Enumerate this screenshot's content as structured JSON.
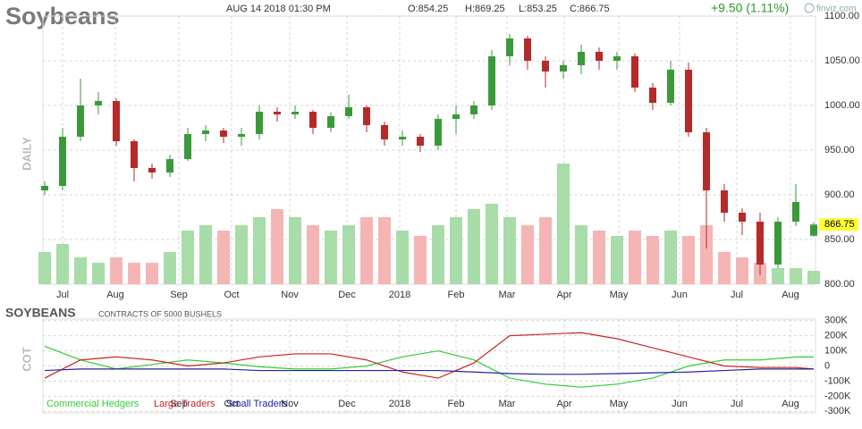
{
  "chart_data": [
    {
      "type": "candlestick",
      "title": "Soybeans",
      "subtitle": "AUG 14 2018 01:30 PM",
      "ohlc_labels": [
        "O:854.25",
        "H:869.25",
        "L:853.25",
        "C:866.75"
      ],
      "change_label": "+9.50 (1.11%)",
      "source": "finviz.com",
      "ylabel": "DAILY",
      "up_color": "#3a9a3a",
      "down_color": "#b52a2a",
      "volume_up_color": "#a8dca8",
      "volume_down_color": "#f5b5b5",
      "xlim": [
        -0.1,
        43.1
      ],
      "xticks": [
        {
          "value": 1,
          "label": "Jul"
        },
        {
          "value": 3.95,
          "label": "Aug"
        },
        {
          "value": 7.5,
          "label": "Sep"
        },
        {
          "value": 10.45,
          "label": "Oct"
        },
        {
          "value": 13.7,
          "label": "Nov"
        },
        {
          "value": 16.9,
          "label": "Dec"
        },
        {
          "value": 19.85,
          "label": "2018"
        },
        {
          "value": 23,
          "label": "Feb"
        },
        {
          "value": 25.85,
          "label": "Mar"
        },
        {
          "value": 29.05,
          "label": "Apr"
        },
        {
          "value": 32.1,
          "label": "May"
        },
        {
          "value": 35.5,
          "label": "Jun"
        },
        {
          "value": 38.7,
          "label": "Jul"
        },
        {
          "value": 41.7,
          "label": "Aug"
        }
      ],
      "ylim": [
        800,
        1100
      ],
      "yticks": [
        {
          "value": 800,
          "label": "800.00"
        },
        {
          "value": 850,
          "label": "850.00"
        },
        {
          "value": 900,
          "label": "900.00"
        },
        {
          "value": 950,
          "label": "950.00"
        },
        {
          "value": 1000,
          "label": "1000.00"
        },
        {
          "value": 1050,
          "label": "1050.00"
        },
        {
          "value": 1100,
          "label": "1100.00"
        }
      ],
      "grid": true,
      "last_price": 866.75,
      "last_price_color": "#ffff33",
      "open": [
        905,
        910,
        965,
        1000,
        1005,
        960,
        930,
        925,
        940,
        968,
        972,
        965,
        968,
        993,
        990,
        993,
        975,
        988,
        998,
        978,
        962,
        965,
        955,
        985,
        990,
        1000,
        1055,
        1075,
        1050,
        1038,
        1045,
        1060,
        1050,
        1055,
        1020,
        1003,
        1040,
        970,
        905,
        880,
        870,
        822,
        870,
        854.25
      ],
      "high": [
        915,
        975,
        1030,
        1015,
        1008,
        962,
        935,
        945,
        975,
        978,
        975,
        975,
        1000,
        998,
        1000,
        995,
        992,
        1012,
        1000,
        982,
        972,
        968,
        990,
        1000,
        1005,
        1062,
        1080,
        1078,
        1055,
        1050,
        1068,
        1065,
        1060,
        1058,
        1025,
        1050,
        1048,
        975,
        912,
        885,
        880,
        875,
        912,
        869.25
      ],
      "low": [
        900,
        905,
        960,
        990,
        955,
        915,
        918,
        920,
        938,
        960,
        958,
        955,
        962,
        982,
        985,
        968,
        970,
        985,
        970,
        955,
        955,
        948,
        950,
        968,
        985,
        995,
        1045,
        1040,
        1020,
        1030,
        1035,
        1040,
        1040,
        1015,
        995,
        1000,
        965,
        840,
        870,
        855,
        810,
        818,
        865,
        853.25
      ],
      "close": [
        910,
        965,
        1000,
        1005,
        960,
        930,
        925,
        940,
        968,
        972,
        965,
        968,
        993,
        990,
        993,
        975,
        988,
        998,
        978,
        962,
        965,
        955,
        985,
        990,
        1000,
        1055,
        1075,
        1050,
        1038,
        1045,
        1060,
        1050,
        1055,
        1020,
        1003,
        1040,
        970,
        905,
        880,
        870,
        822,
        870,
        892,
        866.75
      ],
      "volume_lim": [
        0,
        100
      ],
      "volume": [
        12,
        15,
        10,
        8,
        10,
        8,
        8,
        12,
        20,
        22,
        20,
        22,
        25,
        28,
        25,
        22,
        20,
        22,
        25,
        25,
        20,
        18,
        22,
        25,
        28,
        30,
        25,
        22,
        25,
        45,
        22,
        20,
        18,
        20,
        18,
        20,
        18,
        22,
        12,
        10,
        8,
        6,
        6,
        5
      ]
    },
    {
      "type": "line",
      "title": "SOYBEANS",
      "subtitle": "CONTRACTS OF 5000 BUSHELS",
      "ylabel": "COT",
      "xlim": [
        -0.1,
        43.1
      ],
      "xticks": [
        {
          "value": 7.5,
          "label": "Sep"
        },
        {
          "value": 10.45,
          "label": "Oct"
        },
        {
          "value": 13.7,
          "label": "Nov"
        },
        {
          "value": 16.9,
          "label": "Dec"
        },
        {
          "value": 19.85,
          "label": "2018"
        },
        {
          "value": 23,
          "label": "Feb"
        },
        {
          "value": 25.85,
          "label": "Mar"
        },
        {
          "value": 29.05,
          "label": "Apr"
        },
        {
          "value": 32.1,
          "label": "May"
        },
        {
          "value": 35.5,
          "label": "Jun"
        },
        {
          "value": 38.7,
          "label": "Jul"
        },
        {
          "value": 41.7,
          "label": "Aug"
        }
      ],
      "ylim": [
        -310000,
        310000
      ],
      "yticks": [
        {
          "value": -300000,
          "label": "-300K"
        },
        {
          "value": -200000,
          "label": "-200K"
        },
        {
          "value": -100000,
          "label": "-100K"
        },
        0,
        {
          "value": 100000,
          "label": "100K"
        },
        {
          "value": 200000,
          "label": "200K"
        },
        {
          "value": 300000,
          "label": "300K"
        }
      ],
      "grid": true,
      "x": [
        0,
        2,
        4,
        6,
        8,
        10,
        12,
        14,
        16,
        18,
        20,
        22,
        24,
        26,
        28,
        30,
        32,
        34,
        36,
        38,
        40,
        42,
        43
      ],
      "series": [
        {
          "name": "Commercial Hedgers",
          "color": "#33cc33",
          "values": [
            130000,
            40000,
            -20000,
            10000,
            40000,
            20000,
            -5000,
            -20000,
            -20000,
            0,
            60000,
            100000,
            40000,
            -80000,
            -120000,
            -140000,
            -120000,
            -80000,
            0,
            40000,
            40000,
            60000,
            60000
          ]
        },
        {
          "name": "Large Traders",
          "color": "#cc2222",
          "values": [
            -80000,
            40000,
            60000,
            40000,
            0,
            20000,
            60000,
            80000,
            80000,
            40000,
            -40000,
            -80000,
            20000,
            200000,
            210000,
            220000,
            180000,
            120000,
            60000,
            0,
            -10000,
            -10000,
            -20000
          ]
        },
        {
          "name": "Small Traders",
          "color": "#2222aa",
          "values": [
            -30000,
            -20000,
            -20000,
            -20000,
            -20000,
            -20000,
            -30000,
            -30000,
            -30000,
            -30000,
            -30000,
            -30000,
            -40000,
            -50000,
            -55000,
            -55000,
            -50000,
            -45000,
            -40000,
            -30000,
            -20000,
            -20000,
            -20000
          ]
        }
      ]
    }
  ]
}
